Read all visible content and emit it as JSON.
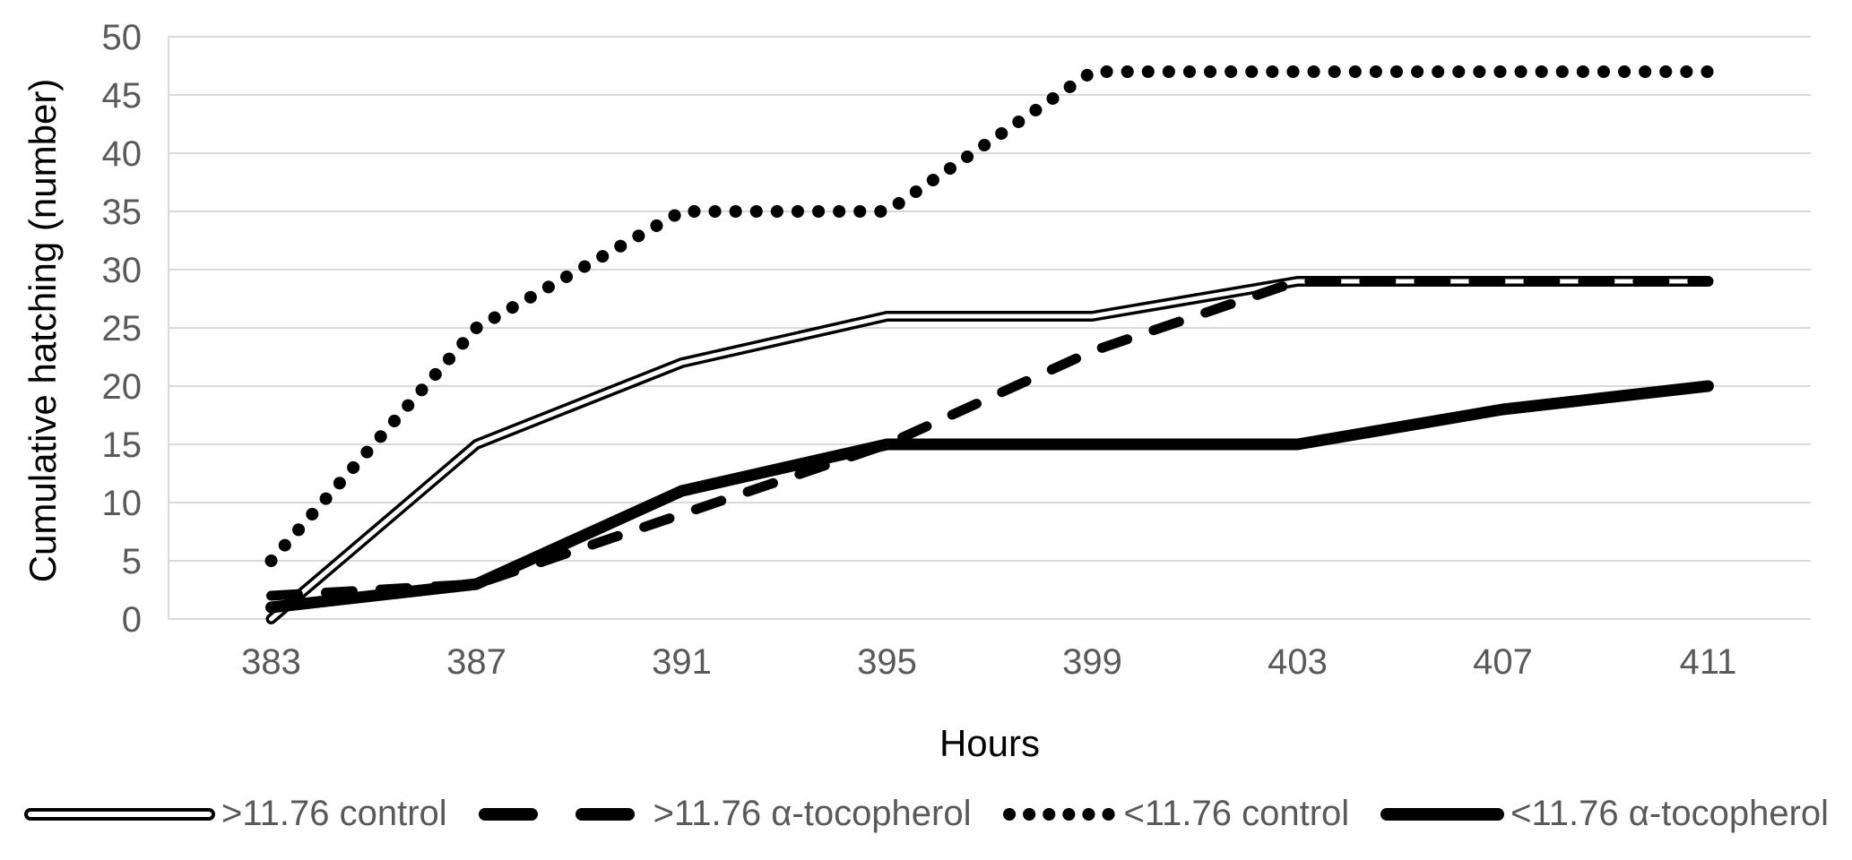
{
  "chart_data": {
    "type": "line",
    "title": "",
    "xlabel": "Hours",
    "ylabel": "Cumulative hatching (number)",
    "x": [
      383,
      387,
      391,
      395,
      399,
      403,
      407,
      411
    ],
    "x_tick_labels": [
      "383",
      "387",
      "391",
      "395",
      "399",
      "403",
      "407",
      "411"
    ],
    "ylim": [
      0,
      50
    ],
    "y_step": 5,
    "y_tick_labels": [
      "0",
      "5",
      "10",
      "15",
      "20",
      "25",
      "30",
      "35",
      "40",
      "45",
      "50"
    ],
    "grid": "horizontal",
    "legend_position": "bottom",
    "series": [
      {
        "name": ">11.76 control",
        "style": "double",
        "values": [
          0,
          15,
          22,
          26,
          26,
          29,
          29,
          29
        ]
      },
      {
        "name": ">11.76 α-tocopherol",
        "style": "dashed",
        "values": [
          2,
          3,
          9,
          15,
          23,
          29,
          29,
          29
        ]
      },
      {
        "name": "<11.76 control",
        "style": "dotted",
        "values": [
          5,
          25,
          35,
          35,
          47,
          47,
          47,
          47
        ]
      },
      {
        "name": "<11.76 α-tocopherol",
        "style": "solid",
        "values": [
          1,
          3,
          11,
          15,
          15,
          15,
          18,
          20
        ]
      }
    ],
    "colors": {
      "series_line": "#000000",
      "gridline": "#d9d9d9",
      "axis_line": "#d9d9d9",
      "tick_label": "#595959",
      "legend_label": "#595959",
      "axis_title": "#000000",
      "background": "#ffffff"
    }
  }
}
